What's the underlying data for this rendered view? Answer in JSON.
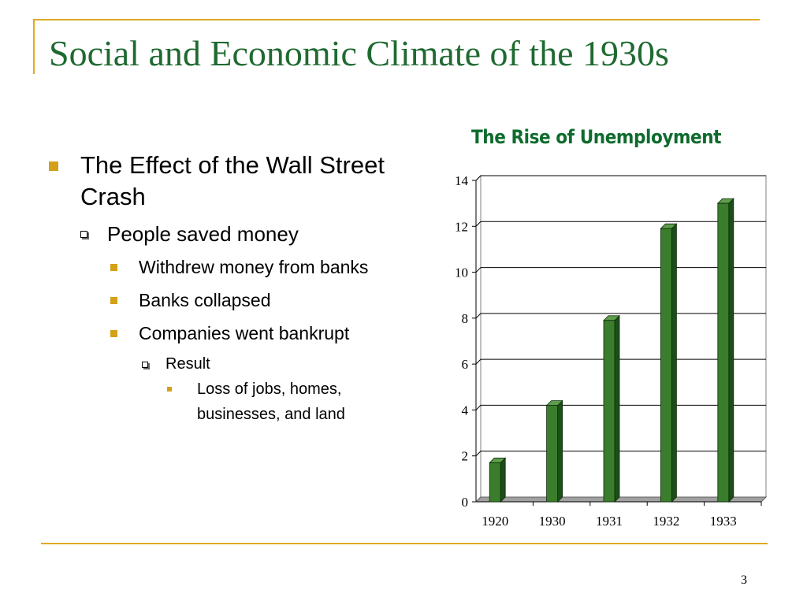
{
  "slide": {
    "title": "Social and Economic Climate of the 1930s",
    "page_number": "3"
  },
  "colors": {
    "accent": "#DDAA22",
    "title": "#1F6A31",
    "chart_title": "#0E6B2D",
    "bullet_square": "#D4A017",
    "bar_front": "#3A7D2C",
    "bar_side": "#1C4E17",
    "bar_top": "#5E9D4C"
  },
  "bullets": [
    {
      "level": 1,
      "marker": "filled-square",
      "text": "The Effect of the Wall Street Crash"
    },
    {
      "level": 2,
      "marker": "hollow-square",
      "text": "People saved money"
    },
    {
      "level": 3,
      "marker": "filled-square",
      "text": "Withdrew money from banks"
    },
    {
      "level": 3,
      "marker": "filled-square",
      "text": "Banks collapsed"
    },
    {
      "level": 3,
      "marker": "filled-square",
      "text": "Companies went bankrupt"
    },
    {
      "level": 4,
      "marker": "hollow-square",
      "text": "Result"
    },
    {
      "level": 5,
      "marker": "small-square",
      "text": "Loss of jobs, homes, businesses, and land"
    }
  ],
  "chart_data": {
    "type": "bar",
    "title": "The Rise of Unemployment",
    "categories": [
      "1920",
      "1930",
      "1931",
      "1932",
      "1933"
    ],
    "values": [
      1.7,
      4.2,
      7.9,
      11.9,
      13.0
    ],
    "ylim": [
      0,
      14
    ],
    "yticks": [
      0,
      2,
      4,
      6,
      8,
      10,
      12,
      14
    ],
    "grid": true,
    "style": "3d"
  }
}
